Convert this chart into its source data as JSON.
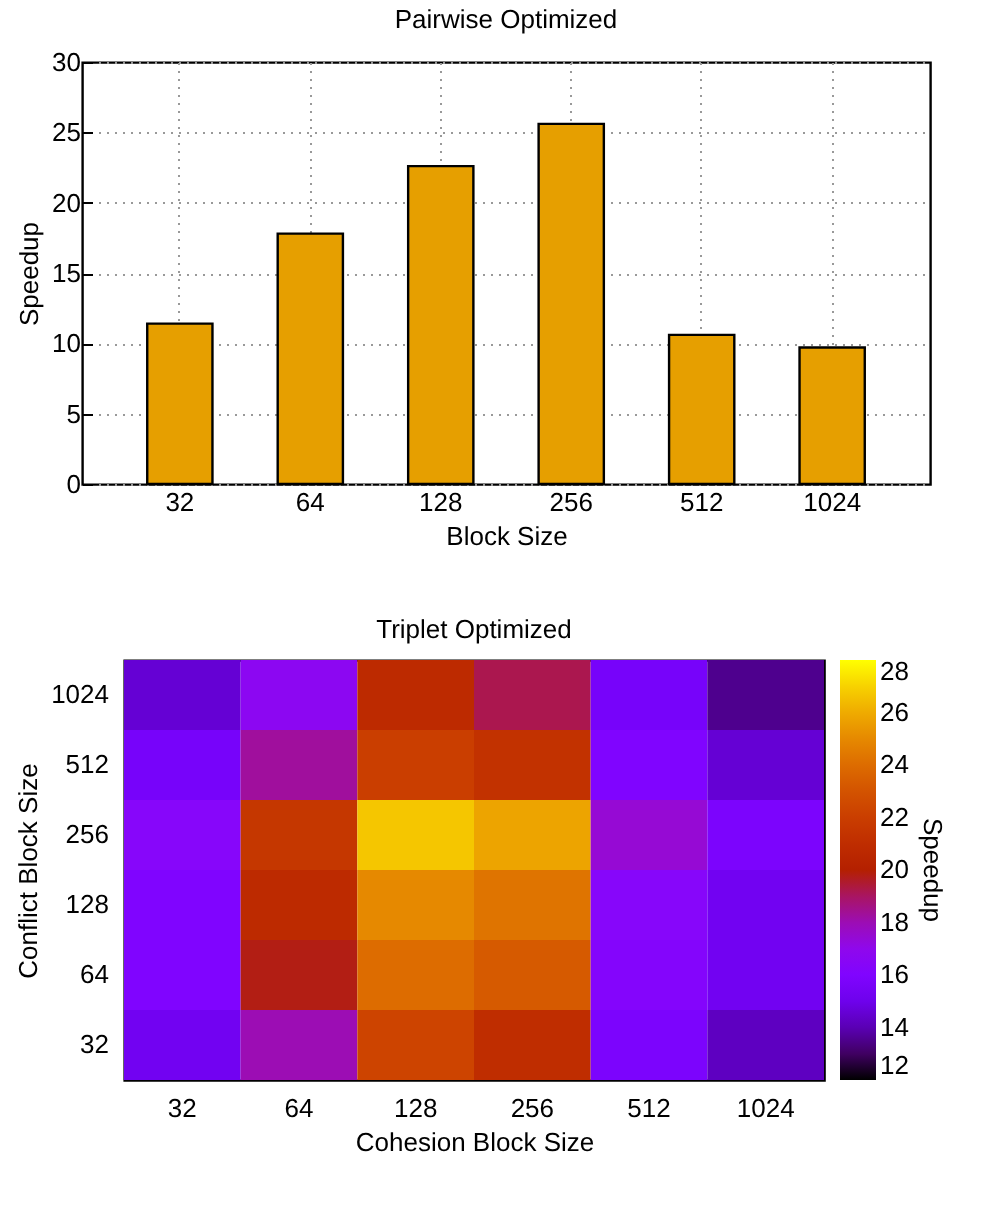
{
  "chart_data": [
    {
      "type": "bar",
      "title": "Pairwise Optimized",
      "xlabel": "Block Size",
      "ylabel": "Speedup",
      "categories": [
        "32",
        "64",
        "128",
        "256",
        "512",
        "1024"
      ],
      "values": [
        11.4,
        17.8,
        22.6,
        25.6,
        10.6,
        9.7
      ],
      "color": "#e69f00",
      "ylim": [
        0,
        30
      ],
      "yticks": [
        0,
        5,
        10,
        15,
        20,
        25,
        30
      ],
      "grid": true
    },
    {
      "type": "heatmap",
      "title": "Triplet Optimized",
      "xlabel": "Cohesion Block Size",
      "ylabel": "Conflict Block Size",
      "clabel": "Speedup",
      "categories": [
        "32",
        "64",
        "128",
        "256",
        "512",
        "1024"
      ],
      "y_categories": [
        "1024",
        "512",
        "256",
        "128",
        "64",
        "32"
      ],
      "cells": [
        [
          14.5,
          16.8,
          20.8,
          19.2,
          15.5,
          13.5
        ],
        [
          15.5,
          18.3,
          22.0,
          21.3,
          16.0,
          14.5
        ],
        [
          16.5,
          21.6,
          26.7,
          25.8,
          17.5,
          15.8
        ],
        [
          16.0,
          20.8,
          25.0,
          24.3,
          16.5,
          15.2
        ],
        [
          16.0,
          19.8,
          24.0,
          23.3,
          16.3,
          15.2
        ],
        [
          15.2,
          18.0,
          22.3,
          21.0,
          15.8,
          14.2
        ]
      ],
      "clim": [
        12,
        28
      ],
      "cticks": [
        12,
        14,
        16,
        18,
        20,
        22,
        24,
        26,
        28
      ]
    }
  ]
}
